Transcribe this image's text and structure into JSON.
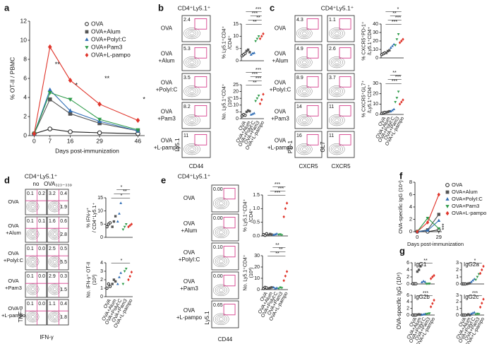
{
  "panel_letters": [
    "a",
    "b",
    "c",
    "d",
    "e",
    "f",
    "g"
  ],
  "groups": {
    "colors": [
      "#222222",
      "#555555",
      "#2f6db5",
      "#2e9b4a",
      "#e0352b"
    ],
    "markers": [
      "circle-open",
      "square",
      "triangle",
      "triangle-down",
      "diamond"
    ]
  },
  "flow_panels": [
    {
      "header": "CD4⁺Ly5.1⁺",
      "rows": [
        [
          "OVA"
        ],
        [
          "OVA",
          "+Alum"
        ],
        [
          "OVA",
          "+PolyI:C"
        ],
        [
          "OVA",
          "+Pam3"
        ],
        [
          "OVA",
          "+L-pampo"
        ]
      ],
      "gates": [
        [
          [
            "2.4"
          ]
        ],
        [
          [
            "5.3"
          ]
        ],
        [
          [
            "3.5"
          ]
        ],
        [
          [
            "8.2"
          ]
        ],
        [
          [
            "11"
          ]
        ]
      ],
      "ylabels": [
        "Ly5.1"
      ],
      "xlabels": [
        "CD44"
      ]
    },
    {
      "header": "CD4⁺Ly5.1⁺",
      "rows": [
        [
          "OVA"
        ],
        [
          "OVA",
          "+Alum"
        ],
        [
          "OVA",
          "+PolyI:C"
        ],
        [
          "OVA",
          "+Pam3"
        ],
        [
          "OVA",
          "+L-pampo"
        ]
      ],
      "gates": [
        [
          [
            "4.3"
          ],
          [
            "1.1"
          ]
        ],
        [
          [
            "4.9"
          ],
          [
            "2.6"
          ]
        ],
        [
          [
            "8.9"
          ],
          [
            "3.7"
          ]
        ],
        [
          [
            "14"
          ],
          [
            "11"
          ]
        ],
        [
          [
            "16"
          ],
          [
            "11"
          ]
        ]
      ],
      "ylabels": [
        "PD-1",
        "GL7"
      ],
      "xlabels": [
        "CXCR5",
        "CXCR5"
      ]
    },
    {
      "header": "CD4⁺Ly5.1⁺",
      "col_headers": [
        "no",
        "OVA₃₂₃₋₃₃₉"
      ],
      "rows": [
        [
          "OVA"
        ],
        [
          "OVA",
          "+Alum"
        ],
        [
          "OVA",
          "+Polyl:C"
        ],
        [
          "OVA",
          "+Pam3"
        ],
        [
          "OVA",
          "+L-pampo"
        ]
      ],
      "gates": [
        [
          [
            "0.1",
            "0.2"
          ],
          [
            "3.2",
            "0.4",
            "1.9"
          ]
        ],
        [
          [
            "0.1",
            "0.1"
          ],
          [
            "1.6",
            "0.6",
            "2.8"
          ]
        ],
        [
          [
            "0.1",
            "0.0"
          ],
          [
            "2.5",
            "0.5",
            "5.5"
          ]
        ],
        [
          [
            "0.1",
            "0.0"
          ],
          [
            "2.9",
            "0.3",
            "1.5"
          ]
        ],
        [
          [
            "0.1",
            "0.0"
          ],
          [
            "1.1",
            "0.4",
            "1.8"
          ]
        ]
      ],
      "ylabels": [
        "TNF-α"
      ],
      "xlabels": [
        "IFN-γ"
      ]
    },
    {
      "header": "CD4⁺Ly5.1⁺",
      "rows": [
        [
          "OVA"
        ],
        [
          "OVA",
          "+Alum"
        ],
        [
          "OVA",
          "+PolyI:C"
        ],
        [
          "OVA",
          "+Pam3"
        ],
        [
          "OVA",
          "+L-pampo"
        ]
      ],
      "gates": [
        [
          [
            "0.00"
          ]
        ],
        [
          [
            "0.00"
          ]
        ],
        [
          [
            "0.10"
          ]
        ],
        [
          [
            "0.00"
          ]
        ],
        [
          [
            "0.65"
          ]
        ]
      ],
      "ylabels": [
        "Ly5.1"
      ],
      "xlabels": [
        "CD44"
      ]
    }
  ],
  "chart_data": [
    {
      "type": "line",
      "ylabel": [
        "% OT-II / PBMC"
      ],
      "xlabel": "Days post-immunization",
      "x": [
        0,
        7,
        16,
        29,
        46
      ],
      "xlim": [
        -2,
        49
      ],
      "xticks": [
        0,
        7,
        16,
        29,
        46
      ],
      "ylim": [
        0,
        12
      ],
      "yticks": [
        0,
        2,
        4,
        6,
        8,
        10,
        12
      ],
      "legend": "top-right",
      "annotations": [
        "**",
        "*",
        "**",
        "*"
      ],
      "series": [
        {
          "name": "OVA",
          "color": "#222222",
          "marker": "circle-open",
          "values": [
            0.2,
            0.7,
            0.4,
            0.3,
            0.2
          ]
        },
        {
          "name": "OVA+Alum",
          "color": "#555555",
          "marker": "square",
          "values": [
            0.2,
            3.8,
            2.3,
            1.3,
            0.5
          ]
        },
        {
          "name": "OVA+PolyI:C",
          "color": "#2f6db5",
          "marker": "triangle",
          "values": [
            0.2,
            4.8,
            2.6,
            1.5,
            0.5
          ]
        },
        {
          "name": "OVA+Pam3",
          "color": "#2e9b4a",
          "marker": "triangle-down",
          "values": [
            0.2,
            4.5,
            3.8,
            1.7,
            0.6
          ]
        },
        {
          "name": "OVA+L-pampo",
          "color": "#e0352b",
          "marker": "diamond",
          "values": [
            0.2,
            9.3,
            5.8,
            3.3,
            1.6
          ]
        }
      ]
    },
    {
      "type": "strip",
      "ylabel": [
        "% Ly5.1⁺CD4⁺",
        "/CD4⁺"
      ],
      "ylim": [
        0,
        15
      ],
      "yticks": [
        0,
        5,
        10,
        15
      ],
      "annotations": [
        "**",
        "**",
        "***",
        "***"
      ],
      "values": [
        [
          2,
          2.5,
          3
        ],
        [
          4,
          4.5,
          3.5
        ],
        [
          2.5,
          3,
          3.2
        ],
        [
          8,
          9,
          10
        ],
        [
          9,
          10,
          11
        ]
      ]
    },
    {
      "type": "strip",
      "ylabel": [
        "No. Ly5.1⁺CD4⁺",
        "(10³)"
      ],
      "ylim": [
        0,
        25
      ],
      "yticks": [
        0,
        5,
        10,
        15,
        20,
        25
      ],
      "annotations": [
        "**",
        "***",
        "***",
        "***"
      ],
      "categories": [
        "OVA",
        "OVA+Alum",
        "OVA+Polyl:C",
        "OVA+Pam3",
        "OVA+L-pampo"
      ],
      "values": [
        [
          2,
          3,
          2.5
        ],
        [
          5,
          6,
          5.5
        ],
        [
          3,
          3.5,
          4
        ],
        [
          13,
          15,
          17
        ],
        [
          11,
          14,
          18
        ]
      ]
    },
    {
      "type": "strip",
      "ylabel": [
        "% CXCR5⁺PD-1⁺",
        "/Ly5.1⁺CD4⁺"
      ],
      "ylim": [
        0,
        40
      ],
      "yticks": [
        0,
        10,
        20,
        30,
        40
      ],
      "annotations": [
        "***",
        "***",
        "**",
        "*"
      ],
      "values": [
        [
          4,
          5,
          6
        ],
        [
          6,
          8,
          9
        ],
        [
          12,
          14,
          16
        ],
        [
          15,
          22,
          28
        ],
        [
          18,
          20,
          22
        ]
      ]
    },
    {
      "type": "strip",
      "ylabel": [
        "% CXCR5⁺GL7⁺",
        "/Ly5.1⁺CD4⁺"
      ],
      "ylim": [
        0,
        30
      ],
      "yticks": [
        0,
        10,
        20,
        30
      ],
      "annotations": [
        "***",
        "***",
        "**"
      ],
      "categories": [
        "OVA",
        "OVA+Alum",
        "OVA+Polyl:C",
        "OVA+Pam3",
        "OVA+L-pampo"
      ],
      "values": [
        [
          1,
          1.5,
          2
        ],
        [
          2,
          2.5,
          3
        ],
        [
          3,
          4,
          5
        ],
        [
          12,
          16,
          22
        ],
        [
          10,
          12,
          14
        ]
      ]
    },
    {
      "type": "strip",
      "ylabel": [
        "% IFN-γ⁺",
        "/ CD4⁺Ly5.1⁺"
      ],
      "ylim": [
        0,
        15
      ],
      "yticks": [
        0,
        5,
        10,
        15
      ],
      "annotations": [
        "*",
        "**",
        "*"
      ],
      "values": [
        [
          4,
          5,
          5.5
        ],
        [
          4,
          6,
          8
        ],
        [
          6,
          9,
          13
        ],
        [
          3,
          4,
          5
        ],
        [
          4,
          4.5,
          5
        ]
      ]
    },
    {
      "type": "strip",
      "ylabel": [
        "No. IFN-γ⁺ OT-II",
        "(10³)"
      ],
      "ylim": [
        0,
        4
      ],
      "yticks": [
        0,
        1,
        2,
        3,
        4
      ],
      "annotations": [
        "*"
      ],
      "categories": [
        "OVA",
        "OVA+Alum",
        "OVA+Polyl:C",
        "OVA+Pam3",
        "OVA+L-pampo"
      ],
      "values": [
        [
          1,
          1.5,
          1.2
        ],
        [
          1.5,
          2,
          1.8
        ],
        [
          1.5,
          2.3,
          2.8
        ],
        [
          1.5,
          3,
          3.3
        ],
        [
          2,
          2.4,
          2.9
        ]
      ]
    },
    {
      "type": "strip",
      "ylabel": [
        "% Ly5.1⁺CD4⁺",
        "/CD4⁺"
      ],
      "ylim": [
        0,
        1.5
      ],
      "yticks": [
        {
          "value": 0,
          "label": "0.0"
        },
        {
          "value": 0.5,
          "label": "0.5"
        },
        {
          "value": 1,
          "label": "1.0"
        },
        {
          "value": 1.5,
          "label": "1.5"
        }
      ],
      "annotations": [
        "***",
        "***",
        "***"
      ],
      "values": [
        [
          0.05,
          0.02,
          0.08
        ],
        [
          0.03,
          0.07,
          0.05
        ],
        [
          0.04,
          0.06,
          0.08
        ],
        [
          0.05,
          0.06,
          0.03
        ],
        [
          0.7,
          1.0,
          1.2
        ]
      ]
    },
    {
      "type": "strip",
      "ylabel": [
        "No. Ly5.1⁺CD4⁺",
        "(10³)"
      ],
      "ylim": [
        0,
        30
      ],
      "yticks": [
        0,
        10,
        20,
        30
      ],
      "annotations": [
        "**",
        "**",
        "**"
      ],
      "categories": [
        "OVA",
        "OVA+Alum",
        "OVA+Polyl:C",
        "OVA+Pam3",
        "OVA+L-pampo"
      ],
      "values": [
        [
          1,
          2,
          1.5
        ],
        [
          1,
          1.5,
          2
        ],
        [
          2,
          1,
          1.5
        ],
        [
          1,
          2,
          1.5
        ],
        [
          8,
          12,
          16
        ]
      ]
    },
    {
      "type": "line",
      "ylabel": [
        "OVA-specific IgG (10⁴)"
      ],
      "xlabel": "Days post-immunization",
      "x": [
        0,
        14,
        29
      ],
      "xlim": [
        -3,
        33
      ],
      "xticks": [
        0,
        29
      ],
      "ylim": [
        0,
        8
      ],
      "yticks": [
        0,
        2,
        4,
        6,
        8
      ],
      "legend": "right",
      "annotations": [
        "***"
      ],
      "series": [
        {
          "name": "OVA",
          "color": "#222222",
          "marker": "circle-open",
          "values": [
            0,
            0,
            0.3
          ]
        },
        {
          "name": "OVA+Alum",
          "color": "#555555",
          "marker": "square",
          "values": [
            0,
            0.3,
            2.8
          ]
        },
        {
          "name": "OVA+PolyI:C",
          "color": "#2f6db5",
          "marker": "triangle",
          "values": [
            0,
            0.2,
            1.8
          ]
        },
        {
          "name": "OVA+Pam3",
          "color": "#2e9b4a",
          "marker": "triangle-down",
          "values": [
            0,
            2.2,
            0.5
          ]
        },
        {
          "name": "OVA+L-pampo",
          "color": "#e0352b",
          "marker": "diamond",
          "values": [
            0,
            1.5,
            6
          ]
        }
      ]
    },
    {
      "type": "strip",
      "title": "IgG1",
      "ylabel": [
        "OVA-specific IgG (10⁴)"
      ],
      "ylim": [
        0,
        6
      ],
      "yticks": [
        0,
        2,
        4,
        6
      ],
      "annotations": [
        "**"
      ],
      "values": [
        [
          0.05,
          0.05,
          0.05
        ],
        [
          3.5,
          4,
          5
        ],
        [
          0.5,
          0.8,
          0.6
        ],
        [
          0.05,
          0.05,
          0.1
        ],
        [
          1.5,
          2,
          2.4
        ]
      ]
    },
    {
      "type": "strip",
      "title": "IgG2a",
      "ylim": [
        0,
        3
      ],
      "yticks": [
        0,
        1,
        2,
        3
      ],
      "annotations": [
        "*"
      ],
      "values": [
        [
          0,
          0,
          0
        ],
        [
          0,
          0.05,
          0.1
        ],
        [
          0.3,
          0.5,
          0.7
        ],
        [
          0.6,
          1,
          1.4
        ],
        [
          1.5,
          2,
          2.5
        ]
      ]
    },
    {
      "type": "strip",
      "title": "IgG2b",
      "ylim": [
        0,
        6
      ],
      "yticks": [
        0,
        2,
        4,
        6
      ],
      "annotations": [
        "***"
      ],
      "categories": [
        "OVA",
        "OVA+Alum",
        "OVA+Polyl:C",
        "OVA+Pam3",
        "OVA+L-pampo"
      ],
      "values": [
        [
          0,
          0,
          0
        ],
        [
          0.1,
          0.2,
          0.1
        ],
        [
          0.1,
          0.2,
          0.3
        ],
        [
          0.3,
          0.4,
          0.5
        ],
        [
          2.5,
          3.5,
          4.5
        ]
      ]
    },
    {
      "type": "strip",
      "title": "IgG2c",
      "ylim": [
        0,
        3
      ],
      "yticks": [
        0,
        1,
        2,
        3
      ],
      "annotations": [
        "***"
      ],
      "categories": [
        "OVA",
        "OVA+Alum",
        "OVA+Polyl:C",
        "OVA+Pam3",
        "OVA+L-pampo"
      ],
      "values": [
        [
          0,
          0,
          0
        ],
        [
          0,
          0.1,
          0
        ],
        [
          0.2,
          0.3,
          0.4
        ],
        [
          0.1,
          0.2,
          0.15
        ],
        [
          1.2,
          1.8,
          2.4
        ]
      ]
    }
  ]
}
